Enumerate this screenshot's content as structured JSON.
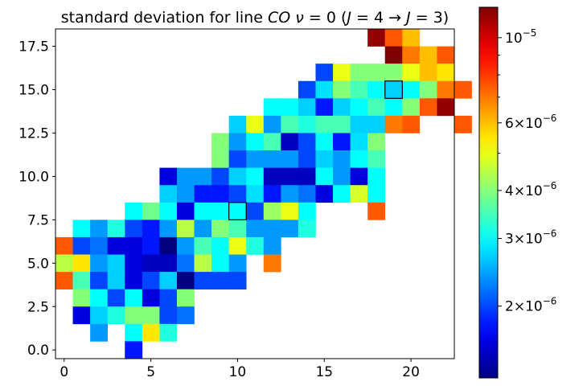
{
  "chart_data": {
    "type": "heatmap",
    "title_prefix": "standard deviation for line ",
    "title_species": "CO",
    "title_nu": "ν",
    "title_mid": " = 0 (",
    "title_j1": "J",
    "title_t1": " = 4 → ",
    "title_j2": "J",
    "title_t2": " = 3)",
    "xlim": [
      -0.5,
      22.5
    ],
    "ylim": [
      -0.5,
      18.5
    ],
    "xticks": [
      0,
      5,
      10,
      15,
      20
    ],
    "xtick_labels": [
      "0",
      "5",
      "10",
      "15",
      "20"
    ],
    "yticks": [
      0.0,
      2.5,
      5.0,
      7.5,
      10.0,
      12.5,
      15.0,
      17.5
    ],
    "ytick_labels": [
      "0.0",
      "2.5",
      "5.0",
      "7.5",
      "10.0",
      "12.5",
      "15.0",
      "17.5"
    ],
    "colormap": "jet",
    "color_scale": "log",
    "clim": [
      1.3e-06,
      1.2e-05
    ],
    "colorbar_labels": [
      {
        "value": 1e-05,
        "mant": "",
        "exp": "−5"
      },
      {
        "value": 6e-06,
        "mant": "6",
        "exp": "−6"
      },
      {
        "value": 4e-06,
        "mant": "4",
        "exp": "−6"
      },
      {
        "value": 3e-06,
        "mant": "3",
        "exp": "−6"
      },
      {
        "value": 2e-06,
        "mant": "2",
        "exp": "−6"
      }
    ],
    "colorbar_minor_ticks": [
      7e-06,
      8e-06,
      9e-06,
      5e-06
    ],
    "highlighted_cells": [
      [
        10,
        8
      ],
      [
        19,
        15
      ]
    ],
    "rows": [
      {
        "y": 18,
        "x0": 18,
        "values": [
          1.15e-05,
          7.5e-06,
          6e-06
        ]
      },
      {
        "y": 17,
        "x0": 19,
        "values": [
          1.2e-05,
          7e-06,
          6e-06,
          7.5e-06
        ]
      },
      {
        "y": 16,
        "x0": 15,
        "values": [
          2e-06,
          5e-06,
          4e-06,
          4e-06,
          4e-06,
          5e-06,
          6e-06,
          5.5e-06
        ]
      },
      {
        "y": 15,
        "x0": 14,
        "values": [
          2e-06,
          2.8e-06,
          4e-06,
          3.5e-06,
          3e-06,
          2.7e-06,
          3e-06,
          4e-06,
          7e-06,
          7.5e-06
        ]
      },
      {
        "y": 14,
        "x0": 12,
        "values": [
          3e-06,
          3e-06,
          2.7e-06,
          1.8e-06,
          2.7e-06,
          3e-06,
          3.5e-06,
          3e-06,
          4e-06,
          7.5e-06,
          1.15e-05
        ]
      },
      {
        "y": 13,
        "x0": 10,
        "values": [
          2.7e-06,
          5e-06,
          2.4e-06,
          3.5e-06,
          3.2e-06,
          3.5e-06,
          3.5e-06,
          2.7e-06,
          2.7e-06,
          7e-06,
          7.5e-06,
          null,
          null,
          7.5e-06
        ]
      },
      {
        "y": 12,
        "x0": 9,
        "values": [
          4e-06,
          2.4e-06,
          3e-06,
          3.5e-06,
          1.5e-06,
          2e-06,
          3e-06,
          1.8e-06,
          2.8e-06,
          4e-06
        ]
      },
      {
        "y": 11,
        "x0": 9,
        "values": [
          4e-06,
          2e-06,
          2.4e-06,
          2.4e-06,
          2.4e-06,
          2e-06,
          2.7e-06,
          2.4e-06,
          3e-06,
          3.5e-06
        ]
      },
      {
        "y": 10,
        "x0": 6,
        "values": [
          1.6e-06,
          2.4e-06,
          2.4e-06,
          2e-06,
          2.7e-06,
          3e-06,
          1.5e-06,
          1.5e-06,
          1.5e-06,
          3e-06,
          2.4e-06,
          1.6e-06,
          3e-06
        ]
      },
      {
        "y": 9,
        "x0": 6,
        "values": [
          2.7e-06,
          2.4e-06,
          1.8e-06,
          1.8e-06,
          2e-06,
          2.8e-06,
          1.8e-06,
          2.4e-06,
          2.2e-06,
          1.6e-06,
          3e-06,
          4.8e-06,
          3e-06
        ]
      },
      {
        "y": 8,
        "x0": 4,
        "values": [
          3e-06,
          3.8e-06,
          3e-06,
          1.6e-06,
          3e-06,
          3e-06,
          3e-06,
          2e-06,
          4.2e-06,
          5e-06,
          3e-06,
          null,
          null,
          null,
          7.5e-06
        ]
      },
      {
        "y": 7,
        "x0": 1,
        "values": [
          3e-06,
          2.4e-06,
          3.2e-06,
          2e-06,
          1.8e-06,
          2.4e-06,
          4.5e-06,
          2.4e-06,
          4e-06,
          3.5e-06,
          2.4e-06,
          2.4e-06,
          2.4e-06,
          3.2e-06
        ]
      },
      {
        "y": 6,
        "x0": 0,
        "values": [
          7.5e-06,
          2e-06,
          2.2e-06,
          1.6e-06,
          1.6e-06,
          1.8e-06,
          1.3e-06,
          2.4e-06,
          3.5e-06,
          3e-06,
          5e-06,
          3.2e-06,
          2.4e-06
        ]
      },
      {
        "y": 5,
        "x0": 0,
        "values": [
          4.5e-06,
          5.5e-06,
          2.4e-06,
          2.7e-06,
          1.6e-06,
          1.5e-06,
          1.5e-06,
          2.2e-06,
          4.5e-06,
          3e-06,
          2.4e-06,
          null,
          7e-06
        ]
      },
      {
        "y": 4,
        "x0": 0,
        "values": [
          7.5e-06,
          3.5e-06,
          2e-06,
          2.7e-06,
          1.6e-06,
          2e-06,
          2.7e-06,
          1.3e-06,
          2e-06,
          2e-06,
          2e-06
        ]
      },
      {
        "y": 3,
        "x0": 1,
        "values": [
          4e-06,
          3e-06,
          2e-06,
          3e-06,
          1.6e-06,
          2e-06,
          4e-06
        ]
      },
      {
        "y": 2,
        "x0": 1,
        "values": [
          1.6e-06,
          2.7e-06,
          3.2e-06,
          4e-06,
          4e-06,
          2e-06,
          2.2e-06
        ]
      },
      {
        "y": 1,
        "x0": 2,
        "values": [
          2.4e-06,
          null,
          3e-06,
          5.5e-06,
          3.2e-06
        ]
      },
      {
        "y": 0,
        "x0": 4,
        "values": [
          1.8e-06
        ]
      }
    ]
  }
}
